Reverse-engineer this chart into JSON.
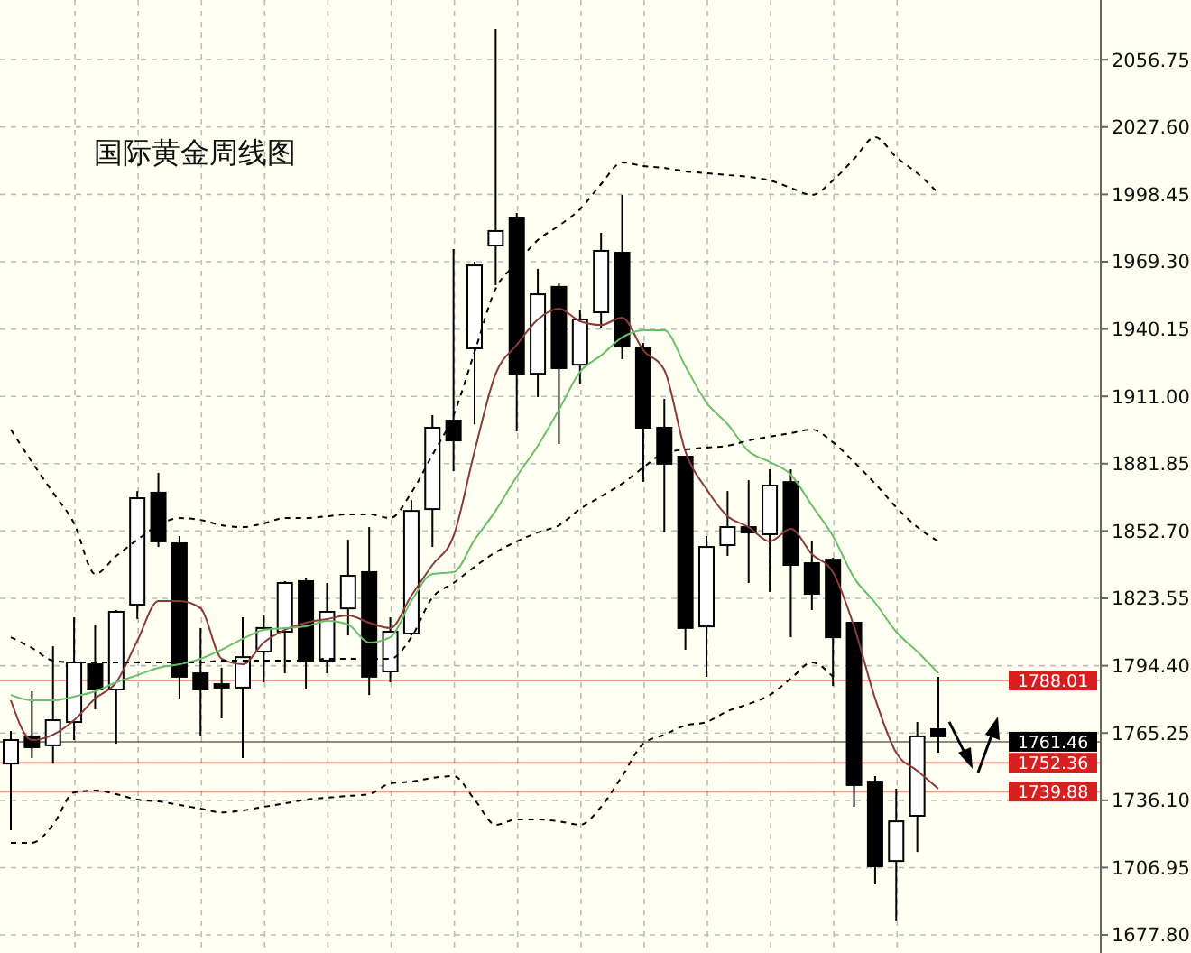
{
  "chart_data": {
    "type": "candlestick",
    "title": "国际黄金周线图",
    "categories": [
      null,
      null,
      null,
      null,
      null,
      null,
      null,
      null,
      null,
      null,
      null,
      null,
      null,
      null,
      null,
      null,
      null,
      null,
      null,
      null,
      null,
      null,
      null,
      null,
      null,
      null,
      null,
      null,
      null,
      null,
      null,
      null,
      null,
      null,
      null,
      null,
      null,
      null,
      null,
      null,
      null,
      null,
      null,
      null,
      null
    ],
    "ohlc": [
      [
        1752.0,
        1766.1,
        1723.1,
        1762.2
      ],
      [
        1763.8,
        1783.3,
        1754.4,
        1759.1
      ],
      [
        1759.9,
        1802.8,
        1752.0,
        1770.8
      ],
      [
        1770.0,
        1815.3,
        1762.2,
        1795.8
      ],
      [
        1795.0,
        1812.2,
        1775.5,
        1784.1
      ],
      [
        1784.1,
        1818.5,
        1760.6,
        1817.7
      ],
      [
        1820.8,
        1870.0,
        1814.6,
        1866.9
      ],
      [
        1869.3,
        1877.9,
        1845.8,
        1848.2
      ],
      [
        1847.4,
        1850.5,
        1780.2,
        1789.6
      ],
      [
        1791.1,
        1810.7,
        1763.8,
        1784.1
      ],
      [
        1786.4,
        1793.5,
        1771.6,
        1784.9
      ],
      [
        1784.9,
        1815.3,
        1754.4,
        1798.1
      ],
      [
        1800.5,
        1816.1,
        1787.2,
        1810.7
      ],
      [
        1809.1,
        1831.0,
        1791.1,
        1830.2
      ],
      [
        1831.0,
        1832.5,
        1784.1,
        1796.6
      ],
      [
        1796.6,
        1830.2,
        1791.1,
        1817.7
      ],
      [
        1819.2,
        1848.9,
        1807.5,
        1833.3
      ],
      [
        1834.9,
        1854.4,
        1781.7,
        1789.6
      ],
      [
        1791.9,
        1815.3,
        1787.2,
        1809.1
      ],
      [
        1808.3,
        1866.1,
        1807.5,
        1861.4
      ],
      [
        1862.2,
        1902.9,
        1845.8,
        1897.4
      ],
      [
        1900.5,
        1974.8,
        1878.6,
        1891.9
      ],
      [
        1931.8,
        1969.3,
        1898.9,
        1967.7
      ],
      [
        1976.3,
        2070.1,
        1959.1,
        1982.6
      ],
      [
        1988.1,
        1990.4,
        1895.8,
        1920.8
      ],
      [
        1920.8,
        1966.2,
        1910.7,
        1955.2
      ],
      [
        1958.4,
        1959.9,
        1890.4,
        1923.2
      ],
      [
        1924.7,
        1948.2,
        1916.2,
        1944.3
      ],
      [
        1947.4,
        1981.8,
        1940.4,
        1974.0
      ],
      [
        1973.2,
        1998.2,
        1927.1,
        1932.6
      ],
      [
        1931.8,
        1934.1,
        1874.0,
        1897.4
      ],
      [
        1897.4,
        1909.9,
        1852.1,
        1881.8
      ],
      [
        1884.9,
        1884.9,
        1801.3,
        1810.7
      ],
      [
        1811.4,
        1850.5,
        1789.6,
        1845.8
      ],
      [
        1846.6,
        1870.0,
        1841.9,
        1854.4
      ],
      [
        1854.4,
        1874.7,
        1830.2,
        1852.1
      ],
      [
        1851.3,
        1879.4,
        1826.3,
        1872.4
      ],
      [
        1873.9,
        1879.4,
        1806.7,
        1838.0
      ],
      [
        1838.8,
        1848.2,
        1818.5,
        1825.5
      ],
      [
        1840.3,
        1841.1,
        1785.6,
        1806.7
      ],
      [
        1813.0,
        1813.0,
        1733.3,
        1742.7
      ],
      [
        1744.2,
        1746.6,
        1699.7,
        1707.5
      ],
      [
        1709.8,
        1741.1,
        1684.1,
        1727.0
      ],
      [
        1729.4,
        1770.0,
        1713.7,
        1763.8
      ],
      [
        1766.9,
        1789.6,
        1756.7,
        1763.8
      ]
    ],
    "series": [
      {
        "type": "line",
        "color": "#8b3a3a",
        "line_style": "solid",
        "values": [
          1779.4,
          1762.2,
          1764.5,
          1770.8,
          1780.2,
          1787.2,
          1805.2,
          1822.4,
          1822.4,
          1819.3,
          1797.4,
          1795.0,
          1804.4,
          1809.9,
          1813.0,
          1814.6,
          1816.1,
          1813.0,
          1810.7,
          1824.7,
          1838.0,
          1850.5,
          1887.2,
          1920.8,
          1933.3,
          1944.3,
          1949.0,
          1943.5,
          1941.9,
          1945.1,
          1931.0,
          1922.4,
          1887.2,
          1870.8,
          1859.1,
          1854.4,
          1848.2,
          1853.6,
          1842.7,
          1834.9,
          1811.4,
          1780.2,
          1756.7,
          1748.9,
          1741.1
        ]
      },
      {
        "type": "line",
        "color": "#6abf69",
        "line_style": "solid",
        "values": [
          1781.7,
          1779.4,
          1779.4,
          1781.0,
          1783.3,
          1787.2,
          1790.3,
          1793.5,
          1795.0,
          1797.4,
          1801.3,
          1806.0,
          1809.9,
          1810.7,
          1811.4,
          1813.8,
          1812.2,
          1804.4,
          1806.7,
          1822.4,
          1834.1,
          1834.9,
          1848.9,
          1861.5,
          1876.3,
          1889.6,
          1905.2,
          1921.6,
          1928.7,
          1936.5,
          1939.6,
          1939.6,
          1924.0,
          1908.3,
          1899.0,
          1887.2,
          1882.6,
          1877.1,
          1863.8,
          1850.5,
          1832.5,
          1821.6,
          1809.1,
          1800.5,
          1791.1
        ]
      },
      {
        "type": "line",
        "color": "#000000",
        "line_style": "dashed",
        "values": [
          1896.6,
          1882.6,
          1869.3,
          1856.0,
          1834.1,
          1841.9,
          1848.9,
          1855.2,
          1858.3,
          1857.5,
          1855.2,
          1854.4,
          1856.0,
          1858.3,
          1858.3,
          1859.1,
          1859.9,
          1859.9,
          1858.3,
          1869.3,
          1885.7,
          1902.9,
          1930.2,
          1957.6,
          1968.5,
          1978.7,
          1984.9,
          1992.0,
          2002.9,
          2012.3,
          2010.7,
          2009.9,
          2008.4,
          2007.6,
          2006.8,
          2006.0,
          2004.5,
          2001.3,
          1998.2,
          2004.5,
          2013.8,
          2023.2,
          2014.6,
          2007.6,
          1999.0
        ]
      },
      {
        "type": "line",
        "color": "#000000",
        "line_style": "dashed",
        "values": [
          1806.7,
          1802.1,
          1796.6,
          1795.8,
          1795.8,
          1795.8,
          1795.8,
          1795.8,
          1795.8,
          1795.8,
          1796.6,
          1796.6,
          1796.6,
          1796.6,
          1796.6,
          1797.4,
          1797.4,
          1797.4,
          1797.4,
          1806.7,
          1823.9,
          1830.2,
          1837.2,
          1843.5,
          1848.2,
          1852.1,
          1855.2,
          1862.2,
          1867.7,
          1873.2,
          1880.2,
          1886.5,
          1888.0,
          1888.8,
          1889.6,
          1891.9,
          1893.5,
          1895.1,
          1896.6,
          1891.1,
          1882.6,
          1873.2,
          1863.0,
          1854.4,
          1848.2
        ]
      },
      {
        "type": "line",
        "color": "#000000",
        "line_style": "dashed",
        "values": [
          1717.7,
          1717.7,
          1725.5,
          1739.5,
          1740.3,
          1738.8,
          1736.4,
          1735.6,
          1734.1,
          1732.5,
          1730.9,
          1731.7,
          1733.3,
          1734.8,
          1736.4,
          1737.2,
          1738.0,
          1738.8,
          1743.4,
          1744.2,
          1745.8,
          1746.6,
          1736.4,
          1725.5,
          1727.8,
          1727.8,
          1727.0,
          1725.5,
          1733.3,
          1746.6,
          1760.6,
          1764.5,
          1768.5,
          1770.0,
          1774.7,
          1777.8,
          1781.7,
          1788.8,
          1795.8,
          1789.6,
          null,
          null,
          null,
          null,
          null
        ]
      }
    ],
    "ylim": [
      1670,
      2082.6
    ],
    "yticks": [
      {
        "value": 1677.8,
        "label": "1677.80"
      },
      {
        "value": 1706.95,
        "label": "1706.95"
      },
      {
        "value": 1736.1,
        "label": "1736.10"
      },
      {
        "value": 1765.25,
        "label": "1765.25"
      },
      {
        "value": 1794.4,
        "label": "1794.40"
      },
      {
        "value": 1823.55,
        "label": "1823.55"
      },
      {
        "value": 1852.7,
        "label": "1852.70"
      },
      {
        "value": 1881.85,
        "label": "1881.85"
      },
      {
        "value": 1911,
        "label": "1911.00"
      },
      {
        "value": 1940.15,
        "label": "1940.15"
      },
      {
        "value": 1969.3,
        "label": "1969.30"
      },
      {
        "value": 1998.45,
        "label": "1998.45"
      },
      {
        "value": 2027.6,
        "label": "2027.60"
      },
      {
        "value": 2056.75,
        "label": "2056.75"
      }
    ],
    "ref_lines": [
      {
        "axis": "y",
        "value": 1788.01,
        "label": "1788.01",
        "color": "#d81e1e"
      },
      {
        "axis": "y",
        "value": 1761.46,
        "label": "1761.46",
        "color": "#000000"
      },
      {
        "axis": "y",
        "value": 1752.36,
        "label": "1752.36",
        "color": "#d81e1e"
      },
      {
        "axis": "y",
        "value": 1739.88,
        "label": "1739.88",
        "color": "#d81e1e"
      }
    ],
    "grid": true,
    "tick_labels": "y"
  }
}
